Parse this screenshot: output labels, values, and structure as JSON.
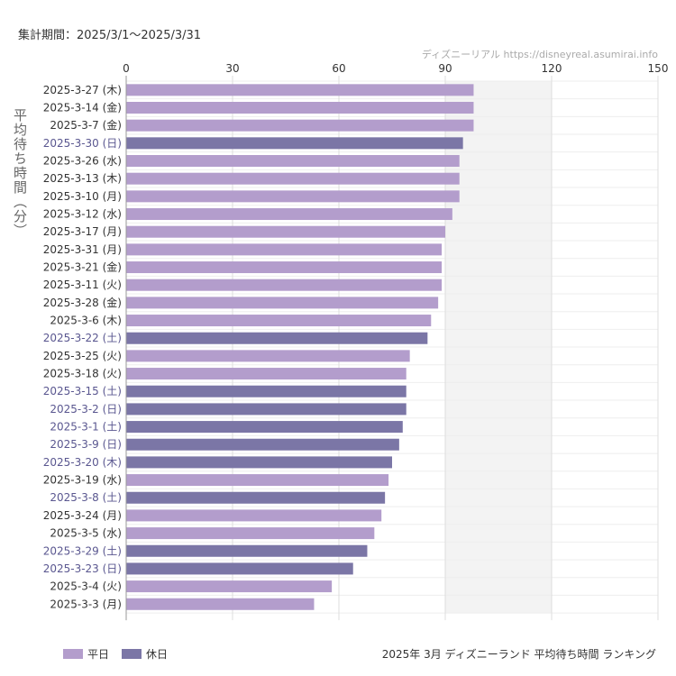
{
  "header": {
    "period": "集計期間：2025/3/1～2025/3/31",
    "source": "ディズニーリアル https://disneyreal.asumirai.info"
  },
  "footer": {
    "legend_weekday": "平日",
    "legend_holiday": "休日",
    "title": "2025年 3月 ディズニーランド 平均待ち時間 ランキング"
  },
  "colors": {
    "weekday": "#b39dcc",
    "holiday": "#7b76a6",
    "holiday_label": "#5a5790",
    "shaded_band": "#f3f3f3",
    "grid": "#dddddd"
  },
  "chart_data": {
    "type": "bar",
    "orientation": "horizontal",
    "xlabel": "",
    "ylabel": "平均待ち時間（分）",
    "xlim": [
      0,
      150
    ],
    "xticks": [
      0,
      30,
      60,
      90,
      120,
      150
    ],
    "shaded_range": [
      90,
      120
    ],
    "grid": true,
    "legend_position": "bottom-left",
    "categories": [
      "2025-3-27 (木)",
      "2025-3-14 (金)",
      "2025-3-7 (金)",
      "2025-3-30 (日)",
      "2025-3-26 (水)",
      "2025-3-13 (木)",
      "2025-3-10 (月)",
      "2025-3-12 (水)",
      "2025-3-17 (月)",
      "2025-3-31 (月)",
      "2025-3-21 (金)",
      "2025-3-11 (火)",
      "2025-3-28 (金)",
      "2025-3-6 (木)",
      "2025-3-22 (土)",
      "2025-3-25 (火)",
      "2025-3-18 (火)",
      "2025-3-15 (土)",
      "2025-3-2 (日)",
      "2025-3-1 (土)",
      "2025-3-9 (日)",
      "2025-3-20 (木)",
      "2025-3-19 (水)",
      "2025-3-8 (土)",
      "2025-3-24 (月)",
      "2025-3-5 (水)",
      "2025-3-29 (土)",
      "2025-3-23 (日)",
      "2025-3-4 (火)",
      "2025-3-3 (月)"
    ],
    "values": [
      98,
      98,
      98,
      95,
      94,
      94,
      94,
      92,
      90,
      89,
      89,
      89,
      88,
      86,
      85,
      80,
      79,
      79,
      79,
      78,
      77,
      75,
      74,
      73,
      72,
      70,
      68,
      64,
      58,
      53
    ],
    "holiday": [
      false,
      false,
      false,
      true,
      false,
      false,
      false,
      false,
      false,
      false,
      false,
      false,
      false,
      false,
      true,
      false,
      false,
      true,
      true,
      true,
      true,
      true,
      false,
      true,
      false,
      false,
      true,
      true,
      false,
      false
    ]
  }
}
